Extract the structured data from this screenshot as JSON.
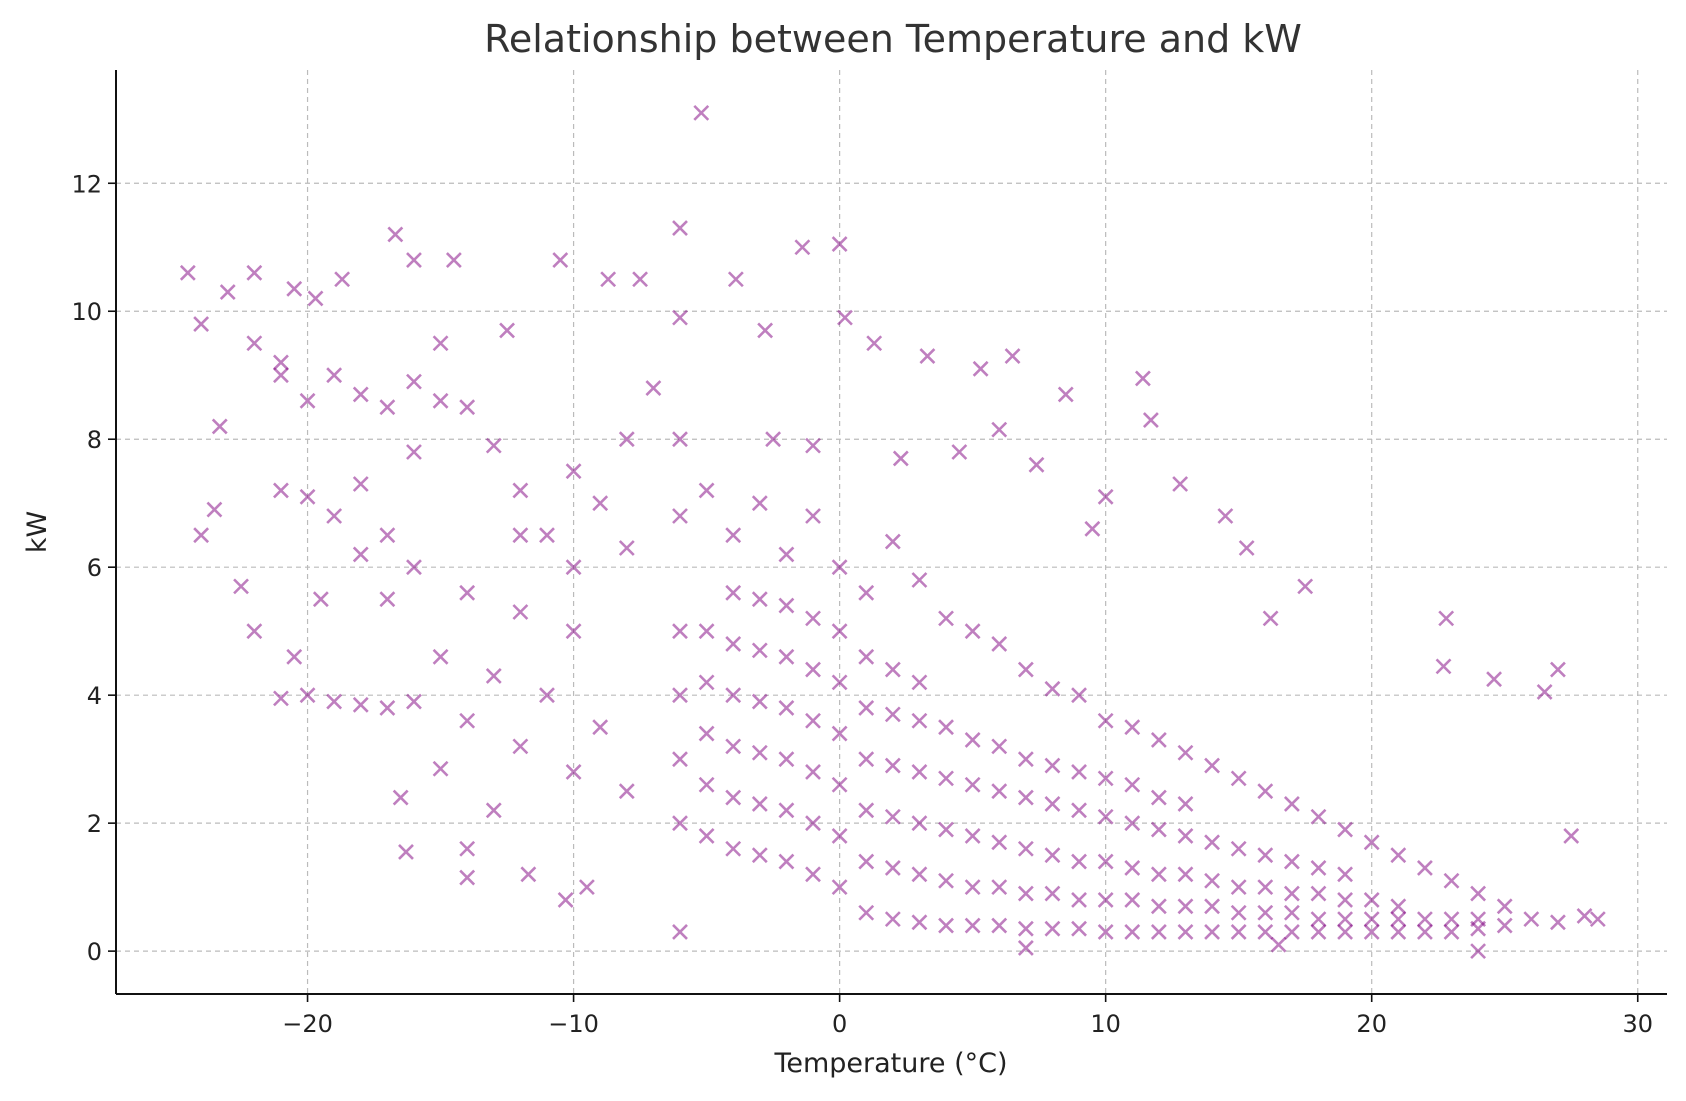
{
  "chart_data": {
    "type": "scatter",
    "title": "Relationship between Temperature and kW",
    "xlabel": "Temperature (°C)",
    "ylabel": "kW",
    "xlim": [
      -27.2,
      31.1
    ],
    "ylim": [
      -0.67,
      13.77
    ],
    "xticks": [
      -20,
      -10,
      0,
      10,
      20,
      30
    ],
    "xtick_labels": [
      "−20",
      "−10",
      "0",
      "10",
      "20",
      "30"
    ],
    "yticks": [
      0,
      2,
      4,
      6,
      8,
      10,
      12
    ],
    "ytick_labels": [
      "0",
      "2",
      "4",
      "6",
      "8",
      "10",
      "12"
    ],
    "grid": true,
    "marker": "x",
    "color": "#800080",
    "alpha": 0.5,
    "points": [
      [
        -5.2,
        13.1
      ],
      [
        -16.7,
        11.2
      ],
      [
        -6,
        11.3
      ],
      [
        0,
        11.05
      ],
      [
        -1.4,
        11
      ],
      [
        -24.5,
        10.6
      ],
      [
        -22,
        10.6
      ],
      [
        -10.5,
        10.8
      ],
      [
        -14.5,
        10.8
      ],
      [
        -16,
        10.8
      ],
      [
        -8.7,
        10.5
      ],
      [
        -7.5,
        10.5
      ],
      [
        -3.9,
        10.5
      ],
      [
        -18.7,
        10.5
      ],
      [
        -23,
        10.3
      ],
      [
        -20.5,
        10.35
      ],
      [
        -19.7,
        10.2
      ],
      [
        -15,
        9.5
      ],
      [
        -24,
        9.8
      ],
      [
        -21,
        9.2
      ],
      [
        -12.5,
        9.7
      ],
      [
        0.2,
        9.9
      ],
      [
        -6,
        9.9
      ],
      [
        1.3,
        9.5
      ],
      [
        3.3,
        9.3
      ],
      [
        6.5,
        9.3
      ],
      [
        5.3,
        9.1
      ],
      [
        11.4,
        8.95
      ],
      [
        8.5,
        8.7
      ],
      [
        11.7,
        8.3
      ],
      [
        -23.3,
        8.2
      ],
      [
        -23.5,
        6.9
      ],
      [
        -24,
        6.5
      ],
      [
        -22,
        5.0
      ],
      [
        -16.3,
        1.55
      ],
      [
        -14,
        1.15
      ],
      [
        -14,
        1.6
      ],
      [
        -10.3,
        0.8
      ],
      [
        -11.7,
        1.2
      ],
      [
        -9.5,
        1.0
      ],
      [
        22.8,
        5.2
      ],
      [
        22.7,
        4.45
      ],
      [
        24.6,
        4.25
      ],
      [
        26.5,
        4.05
      ],
      [
        27,
        4.4
      ],
      [
        16.2,
        5.2
      ],
      [
        17.5,
        5.7
      ],
      [
        14.5,
        6.8
      ],
      [
        15.3,
        6.3
      ],
      [
        12.8,
        7.3
      ],
      [
        10,
        7.1
      ],
      [
        9.5,
        6.6
      ],
      [
        7.4,
        7.6
      ],
      [
        6,
        8.15
      ],
      [
        4.5,
        7.8
      ],
      [
        2.3,
        7.7
      ],
      [
        -2.8,
        9.7
      ],
      [
        -2.5,
        8
      ],
      [
        -1,
        7.9
      ],
      [
        27.5,
        1.8
      ],
      [
        28.5,
        0.5
      ],
      [
        28,
        0.55
      ],
      [
        24,
        0
      ],
      [
        7,
        0.05
      ],
      [
        16.5,
        0.1
      ],
      [
        -6,
        0.3
      ],
      [
        -16.5,
        2.4
      ],
      [
        -13,
        2.2
      ],
      [
        -15,
        2.85
      ],
      [
        -20,
        4.0
      ],
      [
        -21,
        3.95
      ],
      [
        -18,
        3.85
      ],
      [
        -17,
        3.8
      ],
      [
        -20.5,
        4.6
      ],
      [
        -19.5,
        5.5
      ],
      [
        -22.5,
        5.7
      ],
      [
        -17,
        5.5
      ],
      [
        -21,
        7.2
      ],
      [
        -20,
        7.1
      ],
      [
        -19,
        6.8
      ],
      [
        -18,
        7.3
      ],
      [
        -17,
        6.5
      ],
      [
        -16,
        7.8
      ],
      [
        -15,
        8.6
      ],
      [
        -14,
        8.5
      ],
      [
        -13,
        7.9
      ],
      [
        -12,
        7.2
      ],
      [
        -11,
        6.5
      ],
      [
        -10,
        6.0
      ],
      [
        -20,
        8.6
      ],
      [
        -19,
        9.0
      ],
      [
        -18,
        8.7
      ],
      [
        -17,
        8.5
      ],
      [
        -16,
        8.9
      ],
      [
        -22,
        9.5
      ],
      [
        -21,
        9.0
      ],
      [
        -18,
        6.2
      ],
      [
        -16,
        6.0
      ],
      [
        -14,
        5.6
      ],
      [
        -12,
        5.3
      ],
      [
        -10,
        5.0
      ],
      [
        -15,
        4.6
      ],
      [
        -13,
        4.3
      ],
      [
        -11,
        4.0
      ],
      [
        -9,
        3.5
      ],
      [
        -14,
        3.6
      ],
      [
        -12,
        3.2
      ],
      [
        -10,
        2.8
      ],
      [
        -8,
        2.5
      ],
      [
        -16,
        3.9
      ],
      [
        -19,
        3.9
      ],
      [
        -12,
        6.5
      ],
      [
        -10,
        7.5
      ],
      [
        -8,
        8.0
      ],
      [
        -7,
        8.8
      ],
      [
        -6,
        8.0
      ],
      [
        -9,
        7.0
      ],
      [
        -8,
        6.3
      ],
      [
        -6,
        6.8
      ],
      [
        -5,
        7.2
      ],
      [
        -4,
        6.5
      ],
      [
        -3,
        7.0
      ],
      [
        -2,
        6.2
      ],
      [
        -1,
        6.8
      ],
      [
        0,
        6.0
      ],
      [
        1,
        5.6
      ],
      [
        2,
        6.4
      ],
      [
        3,
        5.8
      ],
      [
        4,
        5.2
      ],
      [
        5,
        5.0
      ],
      [
        6,
        4.8
      ],
      [
        7,
        4.4
      ],
      [
        8,
        4.1
      ],
      [
        9,
        4.0
      ],
      [
        10,
        3.6
      ],
      [
        11,
        3.5
      ],
      [
        12,
        3.3
      ],
      [
        13,
        3.1
      ],
      [
        14,
        2.9
      ],
      [
        15,
        2.7
      ],
      [
        16,
        2.5
      ],
      [
        17,
        2.3
      ],
      [
        18,
        2.1
      ],
      [
        19,
        1.9
      ],
      [
        20,
        1.7
      ],
      [
        21,
        1.5
      ],
      [
        22,
        1.3
      ],
      [
        23,
        1.1
      ],
      [
        24,
        0.9
      ],
      [
        25,
        0.7
      ],
      [
        26,
        0.5
      ],
      [
        27,
        0.45
      ],
      [
        -6,
        2
      ],
      [
        -6,
        3
      ],
      [
        -6,
        4
      ],
      [
        -6,
        5
      ],
      [
        -5,
        1.8
      ],
      [
        -5,
        2.6
      ],
      [
        -5,
        3.4
      ],
      [
        -5,
        4.2
      ],
      [
        -5,
        5.0
      ],
      [
        -4,
        1.6
      ],
      [
        -4,
        2.4
      ],
      [
        -4,
        3.2
      ],
      [
        -4,
        4
      ],
      [
        -4,
        4.8
      ],
      [
        -4,
        5.6
      ],
      [
        -3,
        1.5
      ],
      [
        -3,
        2.3
      ],
      [
        -3,
        3.1
      ],
      [
        -3,
        3.9
      ],
      [
        -3,
        4.7
      ],
      [
        -3,
        5.5
      ],
      [
        -2,
        1.4
      ],
      [
        -2,
        2.2
      ],
      [
        -2,
        3
      ],
      [
        -2,
        3.8
      ],
      [
        -2,
        4.6
      ],
      [
        -2,
        5.4
      ],
      [
        -1,
        1.2
      ],
      [
        -1,
        2
      ],
      [
        -1,
        2.8
      ],
      [
        -1,
        3.6
      ],
      [
        -1,
        4.4
      ],
      [
        -1,
        5.2
      ],
      [
        0,
        1
      ],
      [
        0,
        1.8
      ],
      [
        0,
        2.6
      ],
      [
        0,
        3.4
      ],
      [
        0,
        4.2
      ],
      [
        0,
        5
      ],
      [
        1,
        0.6
      ],
      [
        1,
        1.4
      ],
      [
        1,
        2.2
      ],
      [
        1,
        3
      ],
      [
        1,
        3.8
      ],
      [
        1,
        4.6
      ],
      [
        2,
        0.5
      ],
      [
        2,
        1.3
      ],
      [
        2,
        2.1
      ],
      [
        2,
        2.9
      ],
      [
        2,
        3.7
      ],
      [
        2,
        4.4
      ],
      [
        3,
        0.45
      ],
      [
        3,
        1.2
      ],
      [
        3,
        2
      ],
      [
        3,
        2.8
      ],
      [
        3,
        3.6
      ],
      [
        3,
        4.2
      ],
      [
        4,
        0.4
      ],
      [
        4,
        1.1
      ],
      [
        4,
        1.9
      ],
      [
        4,
        2.7
      ],
      [
        4,
        3.5
      ],
      [
        5,
        0.4
      ],
      [
        5,
        1
      ],
      [
        5,
        1.8
      ],
      [
        5,
        2.6
      ],
      [
        5,
        3.3
      ],
      [
        6,
        0.4
      ],
      [
        6,
        1
      ],
      [
        6,
        1.7
      ],
      [
        6,
        2.5
      ],
      [
        6,
        3.2
      ],
      [
        7,
        0.35
      ],
      [
        7,
        0.9
      ],
      [
        7,
        1.6
      ],
      [
        7,
        2.4
      ],
      [
        7,
        3
      ],
      [
        8,
        0.35
      ],
      [
        8,
        0.9
      ],
      [
        8,
        1.5
      ],
      [
        8,
        2.3
      ],
      [
        8,
        2.9
      ],
      [
        9,
        0.35
      ],
      [
        9,
        0.8
      ],
      [
        9,
        1.4
      ],
      [
        9,
        2.2
      ],
      [
        9,
        2.8
      ],
      [
        10,
        0.3
      ],
      [
        10,
        0.8
      ],
      [
        10,
        1.4
      ],
      [
        10,
        2.1
      ],
      [
        10,
        2.7
      ],
      [
        11,
        0.3
      ],
      [
        11,
        0.8
      ],
      [
        11,
        1.3
      ],
      [
        11,
        2
      ],
      [
        11,
        2.6
      ],
      [
        12,
        0.3
      ],
      [
        12,
        0.7
      ],
      [
        12,
        1.2
      ],
      [
        12,
        1.9
      ],
      [
        12,
        2.4
      ],
      [
        13,
        0.3
      ],
      [
        13,
        0.7
      ],
      [
        13,
        1.2
      ],
      [
        13,
        1.8
      ],
      [
        13,
        2.3
      ],
      [
        14,
        0.3
      ],
      [
        14,
        0.7
      ],
      [
        14,
        1.1
      ],
      [
        14,
        1.7
      ],
      [
        15,
        0.3
      ],
      [
        15,
        0.6
      ],
      [
        15,
        1.0
      ],
      [
        15,
        1.6
      ],
      [
        16,
        0.3
      ],
      [
        16,
        0.6
      ],
      [
        16,
        1
      ],
      [
        16,
        1.5
      ],
      [
        17,
        0.3
      ],
      [
        17,
        0.6
      ],
      [
        17,
        0.9
      ],
      [
        17,
        1.4
      ],
      [
        18,
        0.3
      ],
      [
        18,
        0.5
      ],
      [
        18,
        0.9
      ],
      [
        18,
        1.3
      ],
      [
        19,
        0.3
      ],
      [
        19,
        0.5
      ],
      [
        19,
        0.8
      ],
      [
        19,
        1.2
      ],
      [
        20,
        0.3
      ],
      [
        20,
        0.5
      ],
      [
        20,
        0.8
      ],
      [
        21,
        0.3
      ],
      [
        21,
        0.5
      ],
      [
        21,
        0.7
      ],
      [
        22,
        0.3
      ],
      [
        22,
        0.5
      ],
      [
        23,
        0.3
      ],
      [
        23,
        0.5
      ],
      [
        24,
        0.35
      ],
      [
        24,
        0.5
      ],
      [
        25,
        0.4
      ]
    ]
  }
}
